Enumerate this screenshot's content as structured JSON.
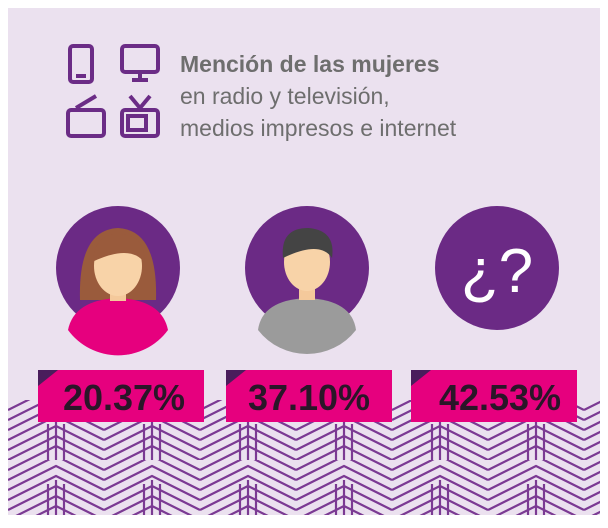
{
  "header": {
    "title_lines": [
      "Mención de las mujeres",
      "en radio y televisión,",
      "medios impresos e internet"
    ]
  },
  "stats": [
    "20.37%",
    "37.10%",
    "42.53%"
  ],
  "question_icon": "¿?"
}
